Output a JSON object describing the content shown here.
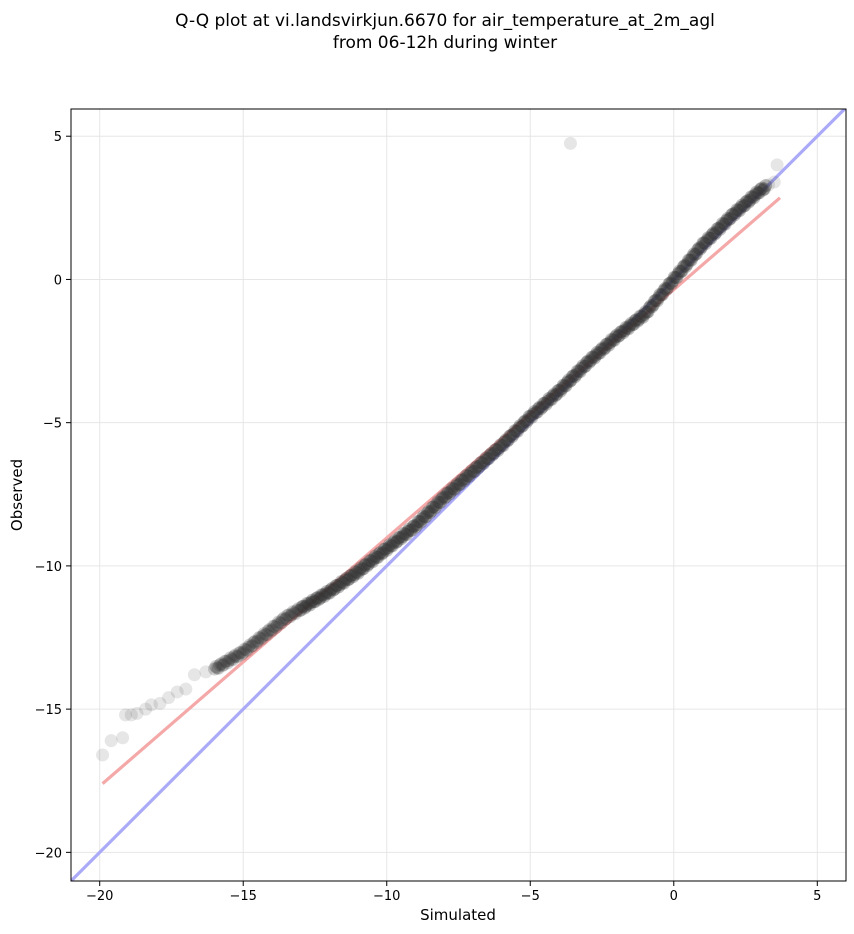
{
  "chart_data": {
    "type": "scatter",
    "title_lines": [
      "Q-Q plot at vi.landsvirkjun.6670 for air_temperature_at_2m_agl",
      "from 06-12h during winter"
    ],
    "xlabel": "Simulated",
    "ylabel": "Observed",
    "xlim": [
      -21,
      6
    ],
    "ylim": [
      -21,
      5.95
    ],
    "x_ticks": [
      -20,
      -15,
      -10,
      -5,
      0,
      5
    ],
    "y_ticks": [
      -20,
      -15,
      -10,
      -5,
      0,
      5
    ],
    "x_tick_labels": [
      "−20",
      "−15",
      "−10",
      "−5",
      "0",
      "5"
    ],
    "y_tick_labels": [
      "−20",
      "−15",
      "−10",
      "−5",
      "0",
      "5"
    ],
    "grid": true,
    "reference_lines": [
      {
        "kind": "identity",
        "color": "#aaaaf8",
        "x": [
          -21,
          6
        ],
        "y": [
          -21,
          6
        ]
      },
      {
        "kind": "fit",
        "color": "#f4a8a8",
        "x": [
          -19.9,
          3.7
        ],
        "y": [
          -17.6,
          2.85
        ]
      }
    ],
    "quantile_curve": {
      "x": [
        -19.9,
        -19.4,
        -19.0,
        -18.5,
        -18.0,
        -17.5,
        -17.0,
        -16.5,
        -16.0,
        -15.5,
        -15.0,
        -14.5,
        -14.0,
        -13.5,
        -13.0,
        -12.5,
        -12.0,
        -11.0,
        -10.0,
        -9.0,
        -8.0,
        -7.0,
        -6.0,
        -5.0,
        -4.0,
        -3.0,
        -2.0,
        -1.0,
        0.0,
        1.0,
        2.0,
        3.0,
        3.5,
        3.7
      ],
      "y": [
        -16.6,
        -16.0,
        -15.2,
        -15.0,
        -14.7,
        -14.5,
        -14.2,
        -13.8,
        -13.6,
        -13.3,
        -13.0,
        -12.6,
        -12.2,
        -11.8,
        -11.5,
        -11.2,
        -10.9,
        -10.2,
        -9.4,
        -8.6,
        -7.6,
        -6.7,
        -5.8,
        -4.8,
        -3.9,
        -2.9,
        -2.0,
        -1.2,
        0.0,
        1.2,
        2.2,
        3.1,
        3.4,
        4.0
      ],
      "points_per_unit": 22
    },
    "outlier_points": [
      {
        "x": -19.9,
        "y": -16.6
      },
      {
        "x": -19.6,
        "y": -16.1
      },
      {
        "x": -19.2,
        "y": -16.0
      },
      {
        "x": -19.1,
        "y": -15.2
      },
      {
        "x": -18.9,
        "y": -15.2
      },
      {
        "x": -18.7,
        "y": -15.15
      },
      {
        "x": -18.4,
        "y": -15.0
      },
      {
        "x": -18.2,
        "y": -14.85
      },
      {
        "x": -17.9,
        "y": -14.8
      },
      {
        "x": -17.6,
        "y": -14.6
      },
      {
        "x": -17.3,
        "y": -14.4
      },
      {
        "x": -17.0,
        "y": -14.3
      },
      {
        "x": -16.7,
        "y": -13.8
      },
      {
        "x": -16.3,
        "y": -13.7
      },
      {
        "x": -3.6,
        "y": 4.75
      },
      {
        "x": 3.6,
        "y": 4.0
      },
      {
        "x": 3.5,
        "y": 3.4
      },
      {
        "x": 3.3,
        "y": 3.3
      }
    ],
    "marker_color": "#333333"
  }
}
